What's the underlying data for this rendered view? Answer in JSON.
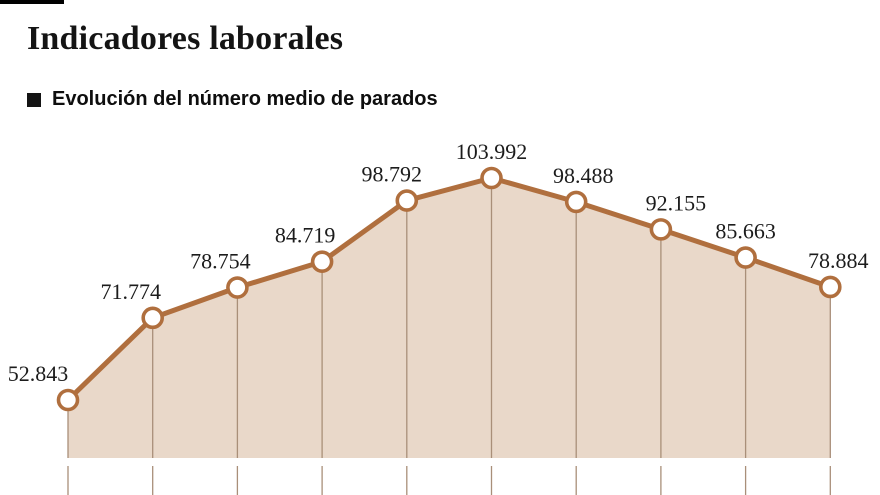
{
  "header": {
    "title": "Indicadores laborales",
    "subtitle": "Evolución del número medio de parados"
  },
  "chart_data": {
    "type": "area",
    "title": "Indicadores laborales",
    "subtitle": "Evolución del número medio de parados",
    "values": [
      52843,
      71774,
      78754,
      84719,
      98792,
      103992,
      98488,
      92155,
      85663,
      78884
    ],
    "point_labels": [
      "52.843",
      "71.774",
      "78.754",
      "84.719",
      "98.792",
      "103.992",
      "98.488",
      "92.155",
      "85.663",
      "78.884"
    ],
    "xlabel": "",
    "ylabel": "",
    "ylim": [
      52843,
      103992
    ],
    "grid": "vertical-droplines",
    "legend": "none",
    "colors": {
      "line": "#b06f3e",
      "fill": "#e9d8c9",
      "dropline": "#a98f79",
      "marker_fill": "#ffffff",
      "label": "#1c1c1c",
      "title": "#141414"
    }
  }
}
